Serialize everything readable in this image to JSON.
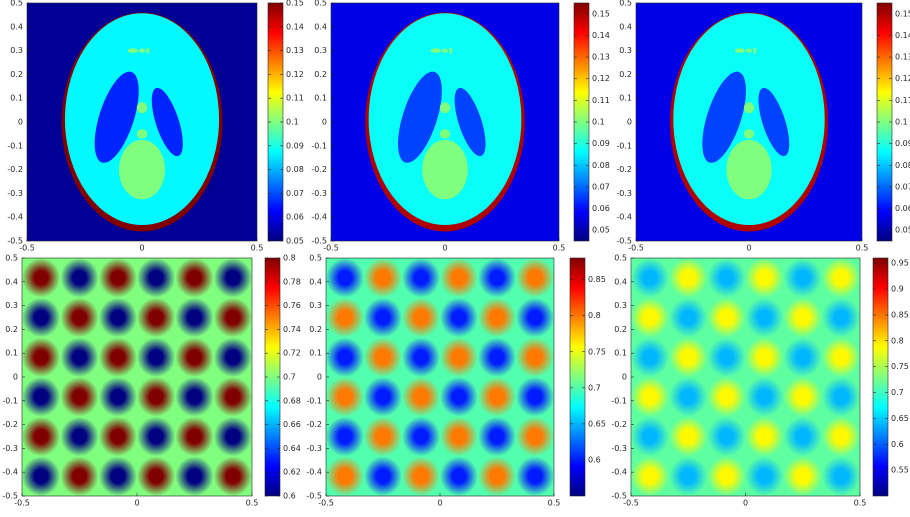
{
  "chart_data": [
    {
      "type": "ellipses",
      "xlim": [
        -0.5,
        0.5
      ],
      "ylim": [
        -0.5,
        0.5
      ],
      "xticks": [
        -0.5,
        0,
        0.5
      ],
      "yticks": [
        -0.5,
        -0.4,
        -0.3,
        -0.2,
        -0.1,
        0,
        0.1,
        0.2,
        0.3,
        0.4,
        0.5
      ],
      "clim": [
        0.05,
        0.15
      ],
      "cticks": [
        0.05,
        0.06,
        0.07,
        0.08,
        0.09,
        0.1,
        0.11,
        0.12,
        0.13,
        0.14,
        0.15
      ],
      "background": 0.052,
      "shapes": [
        {
          "cx": 0,
          "cy": 0,
          "rx": 0.35,
          "ry": 0.46,
          "angle": 0,
          "value": 0.15
        },
        {
          "cx": 0,
          "cy": 0.012,
          "rx": 0.335,
          "ry": 0.445,
          "angle": 0,
          "value": 0.087
        },
        {
          "cx": -0.11,
          "cy": 0.02,
          "rx": 0.075,
          "ry": 0.2,
          "angle": -18,
          "value": 0.066
        },
        {
          "cx": 0.11,
          "cy": 0,
          "rx": 0.05,
          "ry": 0.15,
          "angle": 18,
          "value": 0.066
        },
        {
          "cx": 0,
          "cy": -0.2,
          "rx": 0.1,
          "ry": 0.125,
          "angle": 0,
          "value": 0.1
        },
        {
          "cx": 0,
          "cy": 0.06,
          "rx": 0.023,
          "ry": 0.023,
          "angle": 0,
          "value": 0.1
        },
        {
          "cx": 0,
          "cy": -0.05,
          "rx": 0.023,
          "ry": 0.02,
          "angle": 0,
          "value": 0.1
        },
        {
          "cx": -0.04,
          "cy": 0.3,
          "rx": 0.022,
          "ry": 0.01,
          "angle": 0,
          "value": 0.1
        },
        {
          "cx": 0,
          "cy": 0.3,
          "rx": 0.013,
          "ry": 0.009,
          "angle": 0,
          "value": 0.1
        },
        {
          "cx": 0.025,
          "cy": 0.3,
          "rx": 0.007,
          "ry": 0.013,
          "angle": 0,
          "value": 0.1
        }
      ]
    },
    {
      "type": "ellipses",
      "xlim": [
        -0.5,
        0.5
      ],
      "ylim": [
        -0.5,
        0.5
      ],
      "xticks": [
        -0.5,
        0,
        0.5
      ],
      "yticks": [
        -0.5,
        -0.4,
        -0.3,
        -0.2,
        -0.1,
        0,
        0.1,
        0.2,
        0.3,
        0.4,
        0.5
      ],
      "clim": [
        0.045,
        0.155
      ],
      "cticks": [
        0.05,
        0.06,
        0.07,
        0.08,
        0.09,
        0.1,
        0.11,
        0.12,
        0.13,
        0.14,
        0.15
      ],
      "background": 0.056,
      "shapes": [
        {
          "cx": 0,
          "cy": 0,
          "rx": 0.35,
          "ry": 0.46,
          "angle": 0,
          "value": 0.15
        },
        {
          "cx": 0,
          "cy": 0.012,
          "rx": 0.335,
          "ry": 0.445,
          "angle": 0,
          "value": 0.087
        },
        {
          "cx": -0.11,
          "cy": 0.02,
          "rx": 0.075,
          "ry": 0.2,
          "angle": -18,
          "value": 0.066
        },
        {
          "cx": 0.11,
          "cy": 0,
          "rx": 0.05,
          "ry": 0.15,
          "angle": 18,
          "value": 0.066
        },
        {
          "cx": 0,
          "cy": -0.2,
          "rx": 0.1,
          "ry": 0.125,
          "angle": 0,
          "value": 0.1
        },
        {
          "cx": 0,
          "cy": 0.06,
          "rx": 0.023,
          "ry": 0.023,
          "angle": 0,
          "value": 0.1
        },
        {
          "cx": 0,
          "cy": -0.05,
          "rx": 0.023,
          "ry": 0.02,
          "angle": 0,
          "value": 0.1
        },
        {
          "cx": -0.04,
          "cy": 0.3,
          "rx": 0.022,
          "ry": 0.01,
          "angle": 0,
          "value": 0.1
        },
        {
          "cx": 0,
          "cy": 0.3,
          "rx": 0.013,
          "ry": 0.009,
          "angle": 0,
          "value": 0.1
        },
        {
          "cx": 0.025,
          "cy": 0.3,
          "rx": 0.007,
          "ry": 0.013,
          "angle": 0,
          "value": 0.1
        }
      ]
    },
    {
      "type": "ellipses",
      "xlim": [
        -0.5,
        0.5
      ],
      "ylim": [
        -0.5,
        0.5
      ],
      "xticks": [
        -0.5,
        0,
        0.5
      ],
      "yticks": [
        -0.5,
        -0.4,
        -0.3,
        -0.2,
        -0.1,
        0,
        0.1,
        0.2,
        0.3,
        0.4,
        0.5
      ],
      "clim": [
        0.045,
        0.155
      ],
      "cticks": [
        0.05,
        0.06,
        0.07,
        0.08,
        0.09,
        0.1,
        0.11,
        0.12,
        0.13,
        0.14,
        0.15
      ],
      "background": 0.056,
      "shapes": [
        {
          "cx": 0,
          "cy": 0,
          "rx": 0.35,
          "ry": 0.46,
          "angle": 0,
          "value": 0.15
        },
        {
          "cx": 0,
          "cy": 0.012,
          "rx": 0.335,
          "ry": 0.445,
          "angle": 0,
          "value": 0.087
        },
        {
          "cx": -0.11,
          "cy": 0.02,
          "rx": 0.075,
          "ry": 0.2,
          "angle": -18,
          "value": 0.066
        },
        {
          "cx": 0.11,
          "cy": 0,
          "rx": 0.05,
          "ry": 0.15,
          "angle": 18,
          "value": 0.066
        },
        {
          "cx": 0,
          "cy": -0.2,
          "rx": 0.1,
          "ry": 0.125,
          "angle": 0,
          "value": 0.1
        },
        {
          "cx": 0,
          "cy": 0.06,
          "rx": 0.023,
          "ry": 0.023,
          "angle": 0,
          "value": 0.1
        },
        {
          "cx": 0,
          "cy": -0.05,
          "rx": 0.023,
          "ry": 0.02,
          "angle": 0,
          "value": 0.1
        },
        {
          "cx": -0.04,
          "cy": 0.3,
          "rx": 0.022,
          "ry": 0.01,
          "angle": 0,
          "value": 0.1
        },
        {
          "cx": 0,
          "cy": 0.3,
          "rx": 0.013,
          "ry": 0.009,
          "angle": 0,
          "value": 0.1
        },
        {
          "cx": 0.025,
          "cy": 0.3,
          "rx": 0.007,
          "ry": 0.013,
          "angle": 0,
          "value": 0.1
        }
      ]
    },
    {
      "type": "heatmap",
      "xlim": [
        -0.5,
        0.5
      ],
      "ylim": [
        -0.5,
        0.5
      ],
      "xticks": [
        -0.5,
        0,
        0.5
      ],
      "yticks": [
        -0.5,
        -0.4,
        -0.3,
        -0.2,
        -0.1,
        0,
        0.1,
        0.2,
        0.3,
        0.4,
        0.5
      ],
      "clim": [
        0.6,
        0.8
      ],
      "cticks": [
        0.6,
        0.62,
        0.64,
        0.66,
        0.68,
        0.7,
        0.72,
        0.74,
        0.76,
        0.78,
        0.8
      ],
      "x": [
        -0.417,
        -0.25,
        -0.083,
        0.083,
        0.25,
        0.417
      ],
      "y": [
        0.417,
        0.25,
        0.083,
        -0.083,
        -0.25,
        -0.417
      ],
      "z": [
        [
          0.8,
          0.6,
          0.8,
          0.6,
          0.8,
          0.6
        ],
        [
          0.6,
          0.8,
          0.6,
          0.8,
          0.6,
          0.8
        ],
        [
          0.8,
          0.6,
          0.8,
          0.6,
          0.8,
          0.6
        ],
        [
          0.6,
          0.8,
          0.6,
          0.8,
          0.6,
          0.8
        ],
        [
          0.8,
          0.6,
          0.8,
          0.6,
          0.8,
          0.6
        ],
        [
          0.6,
          0.8,
          0.6,
          0.8,
          0.6,
          0.8
        ]
      ]
    },
    {
      "type": "heatmap",
      "xlim": [
        -0.5,
        0.5
      ],
      "ylim": [
        -0.5,
        0.5
      ],
      "xticks": [
        -0.5,
        0,
        0.5
      ],
      "yticks": [
        -0.5,
        -0.4,
        -0.3,
        -0.2,
        -0.1,
        0,
        0.1,
        0.2,
        0.3,
        0.4,
        0.5
      ],
      "clim": [
        0.55,
        0.88
      ],
      "cticks": [
        0.6,
        0.65,
        0.7,
        0.75,
        0.8,
        0.85
      ],
      "x": [
        -0.417,
        -0.25,
        -0.083,
        0.083,
        0.25,
        0.417
      ],
      "y": [
        0.417,
        0.25,
        0.083,
        -0.083,
        -0.25,
        -0.417
      ],
      "z": [
        [
          0.6,
          0.8,
          0.6,
          0.8,
          0.6,
          0.8
        ],
        [
          0.8,
          0.6,
          0.8,
          0.6,
          0.8,
          0.6
        ],
        [
          0.6,
          0.8,
          0.6,
          0.8,
          0.6,
          0.8
        ],
        [
          0.8,
          0.6,
          0.8,
          0.6,
          0.8,
          0.6
        ],
        [
          0.6,
          0.8,
          0.6,
          0.8,
          0.6,
          0.8
        ],
        [
          0.8,
          0.6,
          0.8,
          0.6,
          0.8,
          0.6
        ]
      ]
    },
    {
      "type": "heatmap",
      "xlim": [
        -0.5,
        0.5
      ],
      "ylim": [
        -0.5,
        0.5
      ],
      "xticks": [
        -0.5,
        0,
        0.5
      ],
      "yticks": [
        -0.5,
        -0.4,
        -0.3,
        -0.2,
        -0.1,
        0,
        0.1,
        0.2,
        0.3,
        0.4,
        0.5
      ],
      "clim": [
        0.5,
        0.96
      ],
      "cticks": [
        0.55,
        0.6,
        0.65,
        0.7,
        0.75,
        0.8,
        0.85,
        0.9,
        0.95
      ],
      "x": [
        -0.417,
        -0.25,
        -0.083,
        0.083,
        0.25,
        0.417
      ],
      "y": [
        0.417,
        0.25,
        0.083,
        -0.083,
        -0.25,
        -0.417
      ],
      "z": [
        [
          0.64,
          0.79,
          0.64,
          0.79,
          0.64,
          0.79
        ],
        [
          0.79,
          0.64,
          0.79,
          0.64,
          0.79,
          0.64
        ],
        [
          0.64,
          0.79,
          0.64,
          0.79,
          0.64,
          0.79
        ],
        [
          0.79,
          0.64,
          0.79,
          0.64,
          0.79,
          0.64
        ],
        [
          0.64,
          0.79,
          0.64,
          0.79,
          0.64,
          0.79
        ],
        [
          0.79,
          0.64,
          0.79,
          0.64,
          0.79,
          0.64
        ]
      ]
    }
  ]
}
